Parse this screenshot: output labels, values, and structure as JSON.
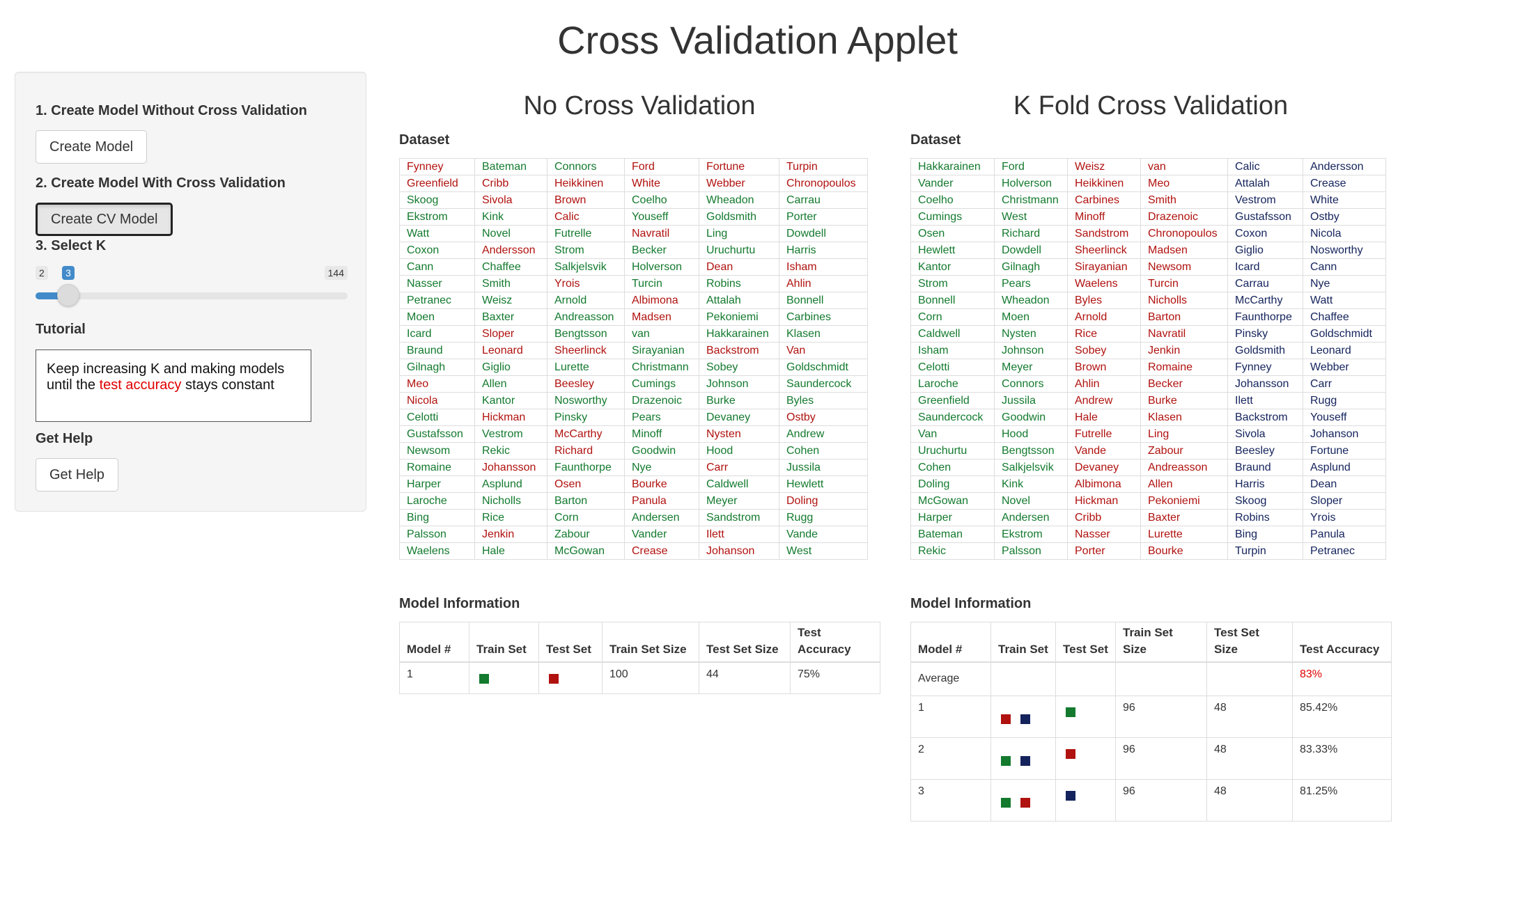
{
  "app_title": "Cross Validation Applet",
  "sidebar": {
    "step1_label": "1. Create Model Without Cross Validation",
    "create_model_label": "Create Model",
    "step2_label": "2. Create Model With Cross Validation",
    "create_cv_label": "Create CV Model",
    "step3_label": "3. Select K",
    "slider": {
      "min": 2,
      "max": 144,
      "value": 3
    },
    "tutorial_label": "Tutorial",
    "tutorial_part1": "Keep increasing K and making models until the ",
    "tutorial_highlight": "test accuracy",
    "tutorial_part2": " stays constant",
    "help_label": "Get Help",
    "help_button_label": "Get Help"
  },
  "colors": {
    "green": "#137a2e",
    "red": "#b0120f",
    "blue": "#14235c",
    "accent": "#428bca",
    "highlight": "#e00000"
  },
  "left": {
    "title": "No Cross Validation",
    "dataset_label": "Dataset",
    "dataset_rows": [
      [
        "Fynney|r",
        "Bateman|g",
        "Connors|g",
        "Ford|r",
        "Fortune|r",
        "Turpin|r"
      ],
      [
        "Greenfield|r",
        "Cribb|r",
        "Heikkinen|r",
        "White|r",
        "Webber|r",
        "Chronopoulos|r"
      ],
      [
        "Skoog|g",
        "Sivola|r",
        "Brown|r",
        "Coelho|g",
        "Wheadon|g",
        "Carrau|g"
      ],
      [
        "Ekstrom|g",
        "Kink|g",
        "Calic|r",
        "Youseff|g",
        "Goldsmith|g",
        "Porter|g"
      ],
      [
        "Watt|g",
        "Novel|g",
        "Futrelle|g",
        "Navratil|r",
        "Ling|g",
        "Dowdell|g"
      ],
      [
        "Coxon|g",
        "Andersson|r",
        "Strom|g",
        "Becker|g",
        "Uruchurtu|g",
        "Harris|g"
      ],
      [
        "Cann|g",
        "Chaffee|g",
        "Salkjelsvik|g",
        "Holverson|g",
        "Dean|r",
        "Isham|r"
      ],
      [
        "Nasser|g",
        "Smith|g",
        "Yrois|r",
        "Turcin|g",
        "Robins|g",
        "Ahlin|r"
      ],
      [
        "Petranec|g",
        "Weisz|g",
        "Arnold|g",
        "Albimona|r",
        "Attalah|g",
        "Bonnell|g"
      ],
      [
        "Moen|g",
        "Baxter|g",
        "Andreasson|g",
        "Madsen|r",
        "Pekoniemi|g",
        "Carbines|g"
      ],
      [
        "Icard|g",
        "Sloper|r",
        "Bengtsson|g",
        "van|g",
        "Hakkarainen|g",
        "Klasen|g"
      ],
      [
        "Braund|g",
        "Leonard|r",
        "Sheerlinck|r",
        "Sirayanian|g",
        "Backstrom|r",
        "Van|r"
      ],
      [
        "Gilnagh|g",
        "Giglio|g",
        "Lurette|g",
        "Christmann|g",
        "Sobey|g",
        "Goldschmidt|g"
      ],
      [
        "Meo|r",
        "Allen|g",
        "Beesley|r",
        "Cumings|g",
        "Johnson|g",
        "Saundercock|g"
      ],
      [
        "Nicola|r",
        "Kantor|g",
        "Nosworthy|g",
        "Drazenoic|g",
        "Burke|g",
        "Byles|g"
      ],
      [
        "Celotti|g",
        "Hickman|r",
        "Pinsky|g",
        "Pears|g",
        "Devaney|g",
        "Ostby|r"
      ],
      [
        "Gustafsson|g",
        "Vestrom|g",
        "McCarthy|r",
        "Minoff|g",
        "Nysten|r",
        "Andrew|g"
      ],
      [
        "Newsom|g",
        "Rekic|g",
        "Richard|r",
        "Goodwin|g",
        "Hood|g",
        "Cohen|g"
      ],
      [
        "Romaine|g",
        "Johansson|r",
        "Faunthorpe|g",
        "Nye|g",
        "Carr|r",
        "Jussila|g"
      ],
      [
        "Harper|g",
        "Asplund|g",
        "Osen|r",
        "Bourke|r",
        "Caldwell|g",
        "Hewlett|g"
      ],
      [
        "Laroche|g",
        "Nicholls|g",
        "Barton|g",
        "Panula|r",
        "Meyer|g",
        "Doling|r"
      ],
      [
        "Bing|g",
        "Rice|g",
        "Corn|g",
        "Andersen|g",
        "Sandstrom|g",
        "Rugg|g"
      ],
      [
        "Palsson|g",
        "Jenkin|r",
        "Zabour|g",
        "Vander|g",
        "Ilett|r",
        "Vande|g"
      ],
      [
        "Waelens|g",
        "Hale|g",
        "McGowan|g",
        "Crease|r",
        "Johanson|r",
        "West|g"
      ]
    ],
    "model_label": "Model Information",
    "model_headers": [
      "Model #",
      "Train Set",
      "Test Set",
      "Train Set Size",
      "Test Set Size",
      "Test Accuracy"
    ],
    "model_rows": [
      {
        "num": "1",
        "train": [
          "green"
        ],
        "test": [
          "red"
        ],
        "train_size": "100",
        "test_size": "44",
        "acc": "75%"
      }
    ]
  },
  "right": {
    "title": "K Fold Cross Validation",
    "dataset_label": "Dataset",
    "dataset_rows": [
      [
        "Hakkarainen|g",
        "Ford|g",
        "Weisz|r",
        "van|r",
        "Calic|b",
        "Andersson|b"
      ],
      [
        "Vander|g",
        "Holverson|g",
        "Heikkinen|r",
        "Meo|r",
        "Attalah|b",
        "Crease|b"
      ],
      [
        "Coelho|g",
        "Christmann|g",
        "Carbines|r",
        "Smith|r",
        "Vestrom|b",
        "White|b"
      ],
      [
        "Cumings|g",
        "West|g",
        "Minoff|r",
        "Drazenoic|r",
        "Gustafsson|b",
        "Ostby|b"
      ],
      [
        "Osen|g",
        "Richard|g",
        "Sandstrom|r",
        "Chronopoulos|r",
        "Coxon|b",
        "Nicola|b"
      ],
      [
        "Hewlett|g",
        "Dowdell|g",
        "Sheerlinck|r",
        "Madsen|r",
        "Giglio|b",
        "Nosworthy|b"
      ],
      [
        "Kantor|g",
        "Gilnagh|g",
        "Sirayanian|r",
        "Newsom|r",
        "Icard|b",
        "Cann|b"
      ],
      [
        "Strom|g",
        "Pears|g",
        "Waelens|r",
        "Turcin|r",
        "Carrau|b",
        "Nye|b"
      ],
      [
        "Bonnell|g",
        "Wheadon|g",
        "Byles|r",
        "Nicholls|r",
        "McCarthy|b",
        "Watt|b"
      ],
      [
        "Corn|g",
        "Moen|g",
        "Arnold|r",
        "Barton|r",
        "Faunthorpe|b",
        "Chaffee|b"
      ],
      [
        "Caldwell|g",
        "Nysten|g",
        "Rice|r",
        "Navratil|r",
        "Pinsky|b",
        "Goldschmidt|b"
      ],
      [
        "Isham|g",
        "Johnson|g",
        "Sobey|r",
        "Jenkin|r",
        "Goldsmith|b",
        "Leonard|b"
      ],
      [
        "Celotti|g",
        "Meyer|g",
        "Brown|r",
        "Romaine|r",
        "Fynney|b",
        "Webber|b"
      ],
      [
        "Laroche|g",
        "Connors|g",
        "Ahlin|r",
        "Becker|r",
        "Johansson|b",
        "Carr|b"
      ],
      [
        "Greenfield|g",
        "Jussila|g",
        "Andrew|r",
        "Burke|r",
        "Ilett|b",
        "Rugg|b"
      ],
      [
        "Saundercock|g",
        "Goodwin|g",
        "Hale|r",
        "Klasen|r",
        "Backstrom|b",
        "Youseff|b"
      ],
      [
        "Van|g",
        "Hood|g",
        "Futrelle|r",
        "Ling|r",
        "Sivola|b",
        "Johanson|b"
      ],
      [
        "Uruchurtu|g",
        "Bengtsson|g",
        "Vande|r",
        "Zabour|r",
        "Beesley|b",
        "Fortune|b"
      ],
      [
        "Cohen|g",
        "Salkjelsvik|g",
        "Devaney|r",
        "Andreasson|r",
        "Braund|b",
        "Asplund|b"
      ],
      [
        "Doling|g",
        "Kink|g",
        "Albimona|r",
        "Allen|r",
        "Harris|b",
        "Dean|b"
      ],
      [
        "McGowan|g",
        "Novel|g",
        "Hickman|r",
        "Pekoniemi|r",
        "Skoog|b",
        "Sloper|b"
      ],
      [
        "Harper|g",
        "Andersen|g",
        "Cribb|r",
        "Baxter|r",
        "Robins|b",
        "Yrois|b"
      ],
      [
        "Bateman|g",
        "Ekstrom|g",
        "Nasser|r",
        "Lurette|r",
        "Bing|b",
        "Panula|b"
      ],
      [
        "Rekic|g",
        "Palsson|g",
        "Porter|r",
        "Bourke|r",
        "Turpin|b",
        "Petranec|b"
      ]
    ],
    "model_label": "Model Information",
    "model_headers": [
      "Model #",
      "Train Set",
      "Test Set",
      "Train Set Size",
      "Test Set Size",
      "Test Accuracy"
    ],
    "average_label": "Average",
    "average_acc": "83%",
    "model_rows": [
      {
        "num": "1",
        "train": [
          "red",
          "blue"
        ],
        "test": [
          "green"
        ],
        "train_size": "96",
        "test_size": "48",
        "acc": "85.42%"
      },
      {
        "num": "2",
        "train": [
          "green",
          "blue"
        ],
        "test": [
          "red"
        ],
        "train_size": "96",
        "test_size": "48",
        "acc": "83.33%"
      },
      {
        "num": "3",
        "train": [
          "green",
          "red"
        ],
        "test": [
          "blue"
        ],
        "train_size": "96",
        "test_size": "48",
        "acc": "81.25%"
      }
    ]
  }
}
